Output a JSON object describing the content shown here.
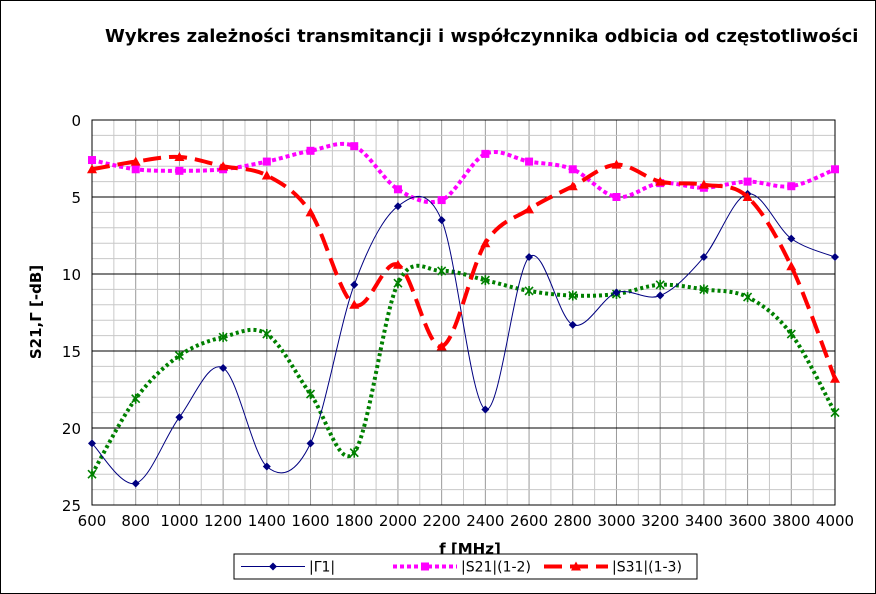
{
  "chart_data": {
    "type": "line",
    "title": "Wykres zależności transmitancji i współczynnika odbicia od częstotliwości",
    "xlabel": "f [MHz]",
    "ylabel": "S21,Γ [-dB]",
    "xlim": [
      600,
      4000
    ],
    "ylim": [
      0,
      25
    ],
    "y_inverted": true,
    "x_ticks": [
      "600",
      "800",
      "1000",
      "1200",
      "1400",
      "1600",
      "1800",
      "2000",
      "2200",
      "2400",
      "2600",
      "2800",
      "3000",
      "3200",
      "3400",
      "3600",
      "3800",
      "4000"
    ],
    "y_ticks": [
      "0",
      "5",
      "10",
      "15",
      "20",
      "25"
    ],
    "grid": true,
    "legend_position": "bottom",
    "series": [
      {
        "name": "|Γ1|",
        "color": "#000080",
        "style": "solid-thin",
        "marker": "diamond",
        "x": [
          600,
          800,
          1000,
          1200,
          1400,
          1600,
          1800,
          2000,
          2200,
          2400,
          2600,
          2800,
          3000,
          3200,
          3400,
          3600,
          3800,
          4000
        ],
        "y": [
          21.0,
          23.6,
          19.3,
          16.1,
          22.5,
          21.0,
          10.7,
          5.6,
          6.5,
          18.8,
          8.9,
          13.3,
          11.2,
          11.4,
          8.9,
          4.8,
          7.7,
          8.9
        ]
      },
      {
        "name": "|S21|(1-2)",
        "color": "#ff00ff",
        "style": "dotted",
        "marker": "square",
        "x": [
          600,
          800,
          1000,
          1200,
          1400,
          1600,
          1800,
          2000,
          2200,
          2400,
          2600,
          2800,
          3000,
          3200,
          3400,
          3600,
          3800,
          4000
        ],
        "y": [
          2.6,
          3.2,
          3.3,
          3.2,
          2.7,
          2.0,
          1.7,
          4.5,
          5.2,
          2.2,
          2.7,
          3.2,
          5.0,
          4.1,
          4.4,
          4.0,
          4.3,
          3.2
        ]
      },
      {
        "name": "|S31|(1-3)",
        "color": "#ff0000",
        "style": "dashed",
        "marker": "triangle",
        "x": [
          600,
          800,
          1000,
          1200,
          1400,
          1600,
          1800,
          2000,
          2200,
          2400,
          2600,
          2800,
          3000,
          3200,
          3400,
          3600,
          3800,
          4000
        ],
        "y": [
          3.2,
          2.7,
          2.4,
          3.0,
          3.6,
          6.0,
          12.0,
          9.4,
          14.7,
          8.0,
          5.8,
          4.3,
          2.9,
          4.0,
          4.2,
          5.0,
          9.5,
          16.8
        ]
      },
      {
        "name": "",
        "color": "#008000",
        "style": "dotted-heavy",
        "marker": "star",
        "x": [
          600,
          800,
          1000,
          1200,
          1400,
          1600,
          1800,
          2000,
          2200,
          2400,
          2600,
          2800,
          3000,
          3200,
          3400,
          3600,
          3800,
          4000
        ],
        "y": [
          23.0,
          18.1,
          15.3,
          14.1,
          13.9,
          17.8,
          21.6,
          10.6,
          9.8,
          10.4,
          11.1,
          11.4,
          11.3,
          10.7,
          11.0,
          11.5,
          13.9,
          19.0
        ]
      }
    ]
  }
}
